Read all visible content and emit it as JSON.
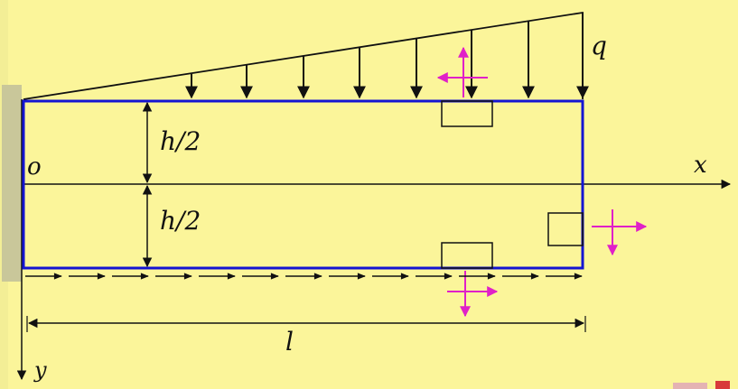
{
  "diagram": {
    "labels": {
      "load": "q",
      "origin": "o",
      "x_axis": "x",
      "y_axis": "y",
      "half_height_top": "h/2",
      "half_height_bottom": "h/2",
      "length": "l"
    },
    "colors": {
      "background": "#fbf59a",
      "beam_outline": "#1414d2",
      "stress_arrows": "#e020c8",
      "lines": "#111111"
    },
    "load_distribution": "linear, zero at left end, maximum q at right end"
  }
}
